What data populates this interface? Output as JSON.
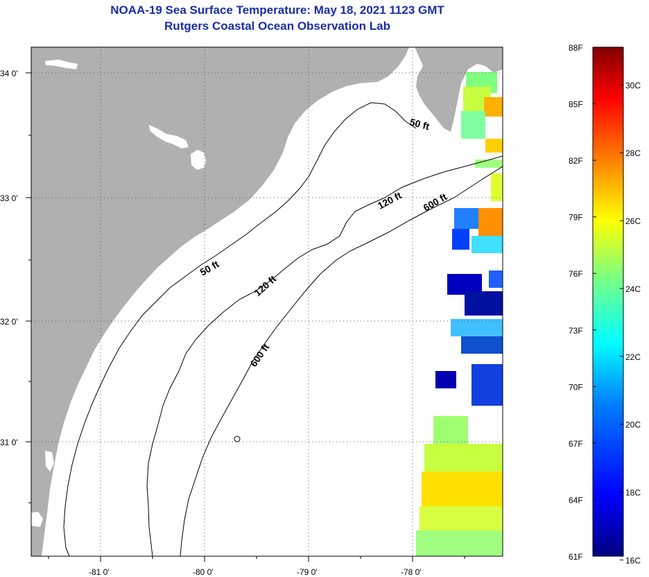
{
  "title": {
    "line1": "NOAA-19 Sea Surface Temperature:  May 18, 2021 1123 GMT",
    "line2": "Rutgers Coastal Ocean Observation Lab"
  },
  "axes": {
    "lon_labels": [
      "-81 0'",
      "-80 0'",
      "-79 0'",
      "-78 0'"
    ],
    "lat_labels": [
      "34 0'",
      "33 0'",
      "32 0'",
      "31 0'"
    ],
    "lon_range": [
      -81.7,
      -77.2
    ],
    "lat_range": [
      30.2,
      34.2
    ]
  },
  "contours": {
    "labels": [
      {
        "text": "50 ft",
        "depth_ft": 50
      },
      {
        "text": "50 ft",
        "depth_ft": 50
      },
      {
        "text": "120 ft",
        "depth_ft": 120
      },
      {
        "text": "120 ft",
        "depth_ft": 120
      },
      {
        "text": "600 ft",
        "depth_ft": 600
      },
      {
        "text": "600 ft",
        "depth_ft": 600
      }
    ]
  },
  "colorbar": {
    "fahrenheit": [
      "88F",
      "85F",
      "82F",
      "79F",
      "76F",
      "73F",
      "70F",
      "67F",
      "64F",
      "61F"
    ],
    "celsius": [
      "30C",
      "28C",
      "26C",
      "24C",
      "22C",
      "20C",
      "18C",
      "16C"
    ],
    "range_f": [
      61,
      88
    ],
    "range_c": [
      16,
      31.1
    ],
    "colors": [
      "#00007f",
      "#0000ff",
      "#007fff",
      "#00ffff",
      "#7fff7f",
      "#ffff00",
      "#ff7f00",
      "#ff0000",
      "#7f0000"
    ]
  },
  "colors": {
    "land": "#b0b0b0",
    "ocean": "#ffffff",
    "title": "#1a2ea6"
  }
}
